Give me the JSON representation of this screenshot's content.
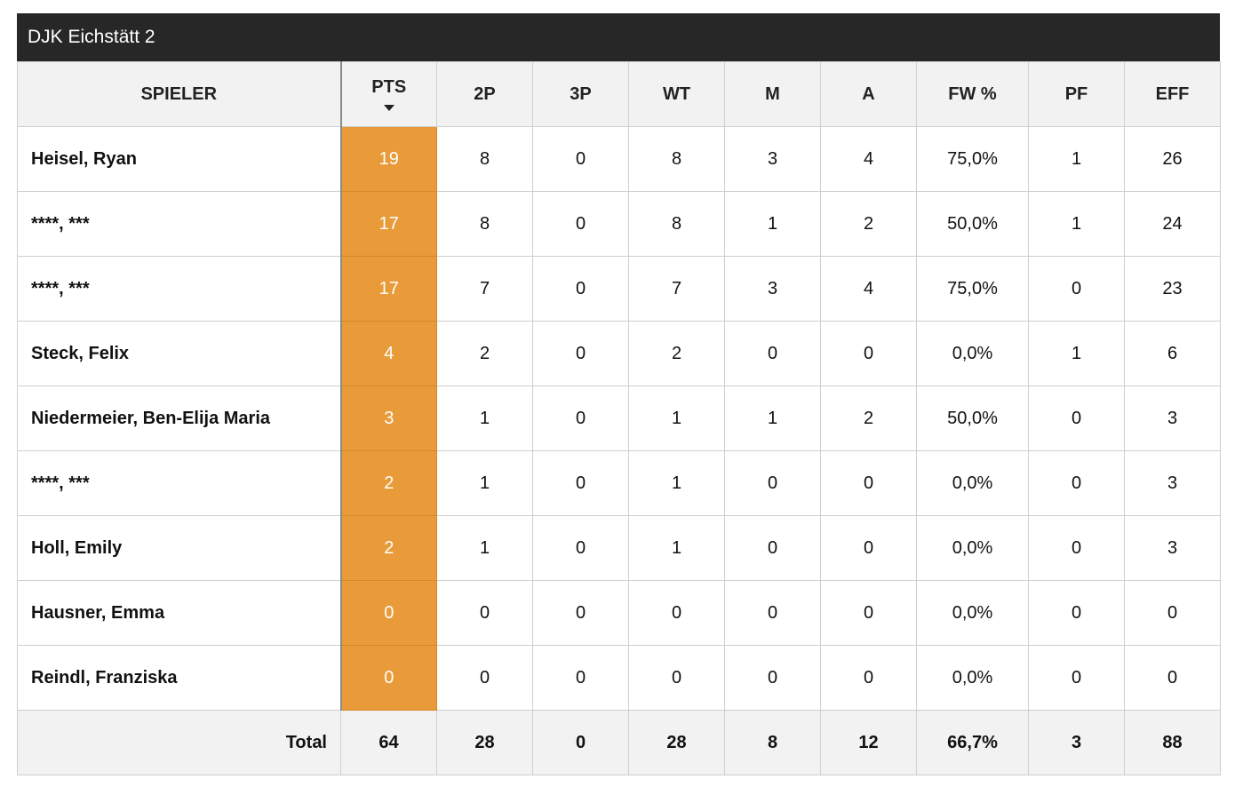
{
  "team": {
    "name": "DJK Eichstätt 2"
  },
  "columns": {
    "player": "SPIELER",
    "pts": "PTS",
    "p2": "2P",
    "p3": "3P",
    "wt": "WT",
    "m": "M",
    "a": "A",
    "fw": "FW %",
    "pf": "PF",
    "eff": "EFF"
  },
  "sort": {
    "column": "pts",
    "direction": "descending"
  },
  "colors": {
    "header_bg": "#272727",
    "highlight": "#e89b38"
  },
  "rows": [
    {
      "name": "Heisel, Ryan",
      "pts": "19",
      "p2": "8",
      "p3": "0",
      "wt": "8",
      "m": "3",
      "a": "4",
      "fw": "75,0%",
      "pf": "1",
      "eff": "26"
    },
    {
      "name": "****, ***",
      "pts": "17",
      "p2": "8",
      "p3": "0",
      "wt": "8",
      "m": "1",
      "a": "2",
      "fw": "50,0%",
      "pf": "1",
      "eff": "24"
    },
    {
      "name": "****, ***",
      "pts": "17",
      "p2": "7",
      "p3": "0",
      "wt": "7",
      "m": "3",
      "a": "4",
      "fw": "75,0%",
      "pf": "0",
      "eff": "23"
    },
    {
      "name": "Steck, Felix",
      "pts": "4",
      "p2": "2",
      "p3": "0",
      "wt": "2",
      "m": "0",
      "a": "0",
      "fw": "0,0%",
      "pf": "1",
      "eff": "6"
    },
    {
      "name": "Niedermeier, Ben-Elija Maria",
      "pts": "3",
      "p2": "1",
      "p3": "0",
      "wt": "1",
      "m": "1",
      "a": "2",
      "fw": "50,0%",
      "pf": "0",
      "eff": "3"
    },
    {
      "name": "****, ***",
      "pts": "2",
      "p2": "1",
      "p3": "0",
      "wt": "1",
      "m": "0",
      "a": "0",
      "fw": "0,0%",
      "pf": "0",
      "eff": "3"
    },
    {
      "name": "Holl, Emily",
      "pts": "2",
      "p2": "1",
      "p3": "0",
      "wt": "1",
      "m": "0",
      "a": "0",
      "fw": "0,0%",
      "pf": "0",
      "eff": "3"
    },
    {
      "name": "Hausner, Emma",
      "pts": "0",
      "p2": "0",
      "p3": "0",
      "wt": "0",
      "m": "0",
      "a": "0",
      "fw": "0,0%",
      "pf": "0",
      "eff": "0"
    },
    {
      "name": "Reindl, Franziska",
      "pts": "0",
      "p2": "0",
      "p3": "0",
      "wt": "0",
      "m": "0",
      "a": "0",
      "fw": "0,0%",
      "pf": "0",
      "eff": "0"
    }
  ],
  "total": {
    "label": "Total",
    "pts": "64",
    "p2": "28",
    "p3": "0",
    "wt": "28",
    "m": "8",
    "a": "12",
    "fw": "66,7%",
    "pf": "3",
    "eff": "88"
  }
}
